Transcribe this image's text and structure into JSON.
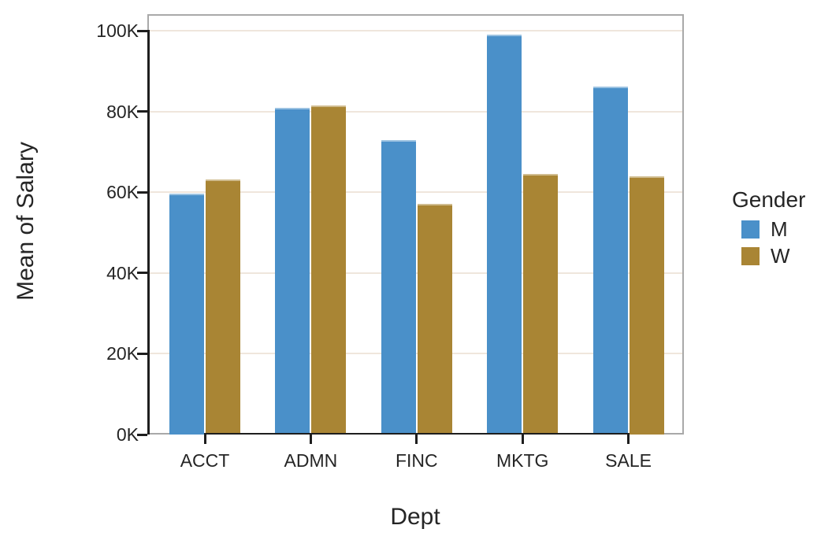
{
  "chart_data": {
    "type": "bar",
    "title": "",
    "categories": [
      "ACCT",
      "ADMN",
      "FINC",
      "MKTG",
      "SALE"
    ],
    "series": [
      {
        "name": "M",
        "color": "#4A90C9",
        "values": [
          59.6,
          80.9,
          72.9,
          99.1,
          86.2
        ]
      },
      {
        "name": "W",
        "color": "#A98534",
        "values": [
          63.1,
          81.5,
          57.1,
          64.5,
          64.0
        ]
      }
    ],
    "value_unit": "K",
    "xlabel": "Dept",
    "ylabel": "Mean of Salary",
    "ylim": [
      0,
      100
    ],
    "ytick_step": 20,
    "ytick_labels": [
      "0K",
      "20K",
      "40K",
      "60K",
      "80K",
      "100K"
    ],
    "grid": "horizontal",
    "legend": {
      "title": "Gender",
      "position": "right",
      "entries": [
        "M",
        "W"
      ]
    }
  },
  "colors": {
    "bar_m": "#4A90C9",
    "bar_w": "#A98534",
    "gridline": "#efe6dc",
    "frame": "#a9a9a9",
    "axis": "#1e1e1e",
    "text": "#252525",
    "background": "#ffffff"
  }
}
